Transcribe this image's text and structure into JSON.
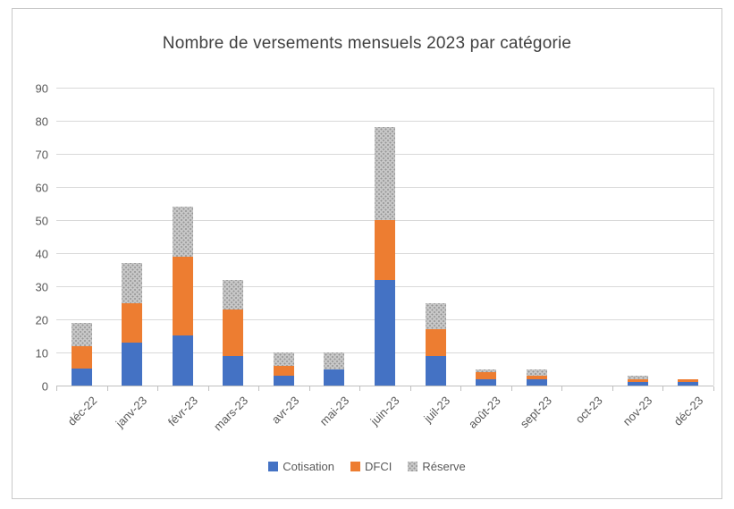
{
  "title": "Nombre de versements mensuels 2023 par catégorie",
  "colors": {
    "cotisation": "#4472C4",
    "dfci": "#ED7D31",
    "reserve": "#A5A5A5",
    "grid": "#D9D9D9",
    "axis_text": "#595959",
    "title_text": "#404040",
    "card_border": "#C9C9C9"
  },
  "chart_data": {
    "type": "bar",
    "stacked": true,
    "title": "Nombre de versements mensuels 2023 par catégorie",
    "categories": [
      "déc-22",
      "janv-23",
      "févr-23",
      "mars-23",
      "avr-23",
      "mai-23",
      "juin-23",
      "juil-23",
      "août-23",
      "sept-23",
      "oct-23",
      "nov-23",
      "déc-23"
    ],
    "series": [
      {
        "name": "Cotisation",
        "color": "#4472C4",
        "pattern": "solid",
        "values": [
          5,
          13,
          15,
          9,
          3,
          5,
          32,
          9,
          2,
          2,
          0,
          1,
          1
        ]
      },
      {
        "name": "DFCI",
        "color": "#ED7D31",
        "pattern": "solid",
        "values": [
          7,
          12,
          24,
          14,
          3,
          0,
          18,
          8,
          2,
          1,
          0,
          1,
          1
        ]
      },
      {
        "name": "Réserve",
        "color": "#A5A5A5",
        "pattern": "dotted",
        "values": [
          7,
          12,
          15,
          9,
          4,
          5,
          28,
          8,
          1,
          2,
          0,
          1,
          0
        ]
      }
    ],
    "totals": [
      19,
      37,
      54,
      32,
      10,
      10,
      78,
      25,
      5,
      5,
      0,
      3,
      2
    ],
    "y_axis": {
      "min": 0,
      "max": 90,
      "step": 10,
      "ticks": [
        "0",
        "10",
        "20",
        "30",
        "40",
        "50",
        "60",
        "70",
        "80",
        "90"
      ]
    },
    "xlabel": "",
    "ylabel": "",
    "grid": true,
    "legend_position": "bottom",
    "legend": [
      "Cotisation",
      "DFCI",
      "Réserve"
    ]
  }
}
